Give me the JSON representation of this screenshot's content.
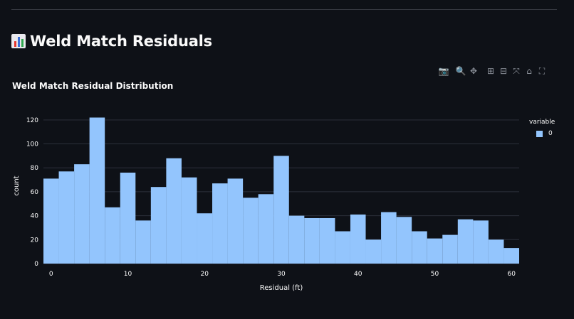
{
  "page": {
    "title": "Weld Match Residuals",
    "title_icon": "bar-chart-emoji"
  },
  "toolbar": {
    "items": [
      {
        "name": "camera-icon",
        "glyph": "📷"
      },
      {
        "name": "zoom-icon",
        "glyph": "🔍"
      },
      {
        "name": "pan-icon",
        "glyph": "✥"
      },
      {
        "name": "zoom-in-icon",
        "glyph": "⊞"
      },
      {
        "name": "zoom-out-icon",
        "glyph": "⊟"
      },
      {
        "name": "autoscale-icon",
        "glyph": "⤧"
      },
      {
        "name": "reset-axes-icon",
        "glyph": "⌂"
      },
      {
        "name": "fullscreen-icon",
        "glyph": "⛶"
      }
    ]
  },
  "chart_data": {
    "type": "bar",
    "title": "Weld Match Residual Distribution",
    "xlabel": "Residual (ft)",
    "ylabel": "count",
    "bin_width": 2,
    "x_start": -1,
    "values": [
      71,
      77,
      83,
      122,
      47,
      76,
      36,
      64,
      88,
      72,
      42,
      67,
      71,
      55,
      58,
      90,
      40,
      38,
      38,
      27,
      41,
      20,
      43,
      39,
      27,
      21,
      24,
      37,
      36,
      20,
      13
    ],
    "xlim": [
      -1,
      61
    ],
    "ylim": [
      0,
      130
    ],
    "x_ticks": [
      "0",
      "10",
      "20",
      "30",
      "40",
      "50",
      "60"
    ],
    "y_ticks": [
      "0",
      "20",
      "40",
      "60",
      "80",
      "100",
      "120"
    ],
    "legend": {
      "title": "variable",
      "items": [
        "0"
      ],
      "position": "top-right"
    },
    "bar_color": "#93c5fd",
    "grid": true
  }
}
